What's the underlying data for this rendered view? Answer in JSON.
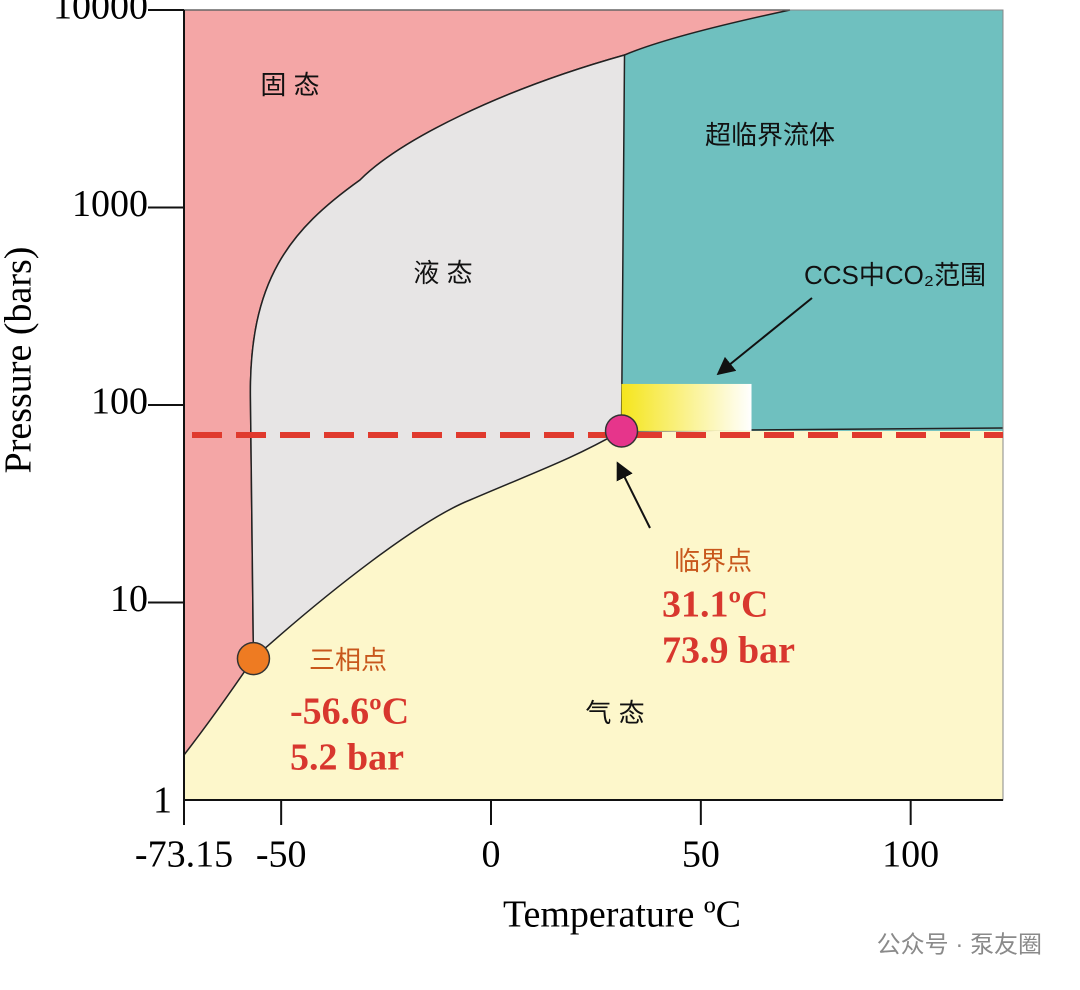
{
  "chart_data": {
    "type": "phase-diagram",
    "x_label": "Temperature ºC",
    "y_label": "Pressure (bars)",
    "xlim": [
      -73.15,
      122
    ],
    "xticks": [
      -73.15,
      -50,
      0,
      50,
      100
    ],
    "ylim": [
      1,
      10000
    ],
    "yticks": [
      1,
      10,
      100,
      1000,
      10000
    ],
    "y_scale": "log",
    "regions": [
      {
        "name": "固 态",
        "color": "#f4a6a6"
      },
      {
        "name": "液 态",
        "color": "#e7e5e5"
      },
      {
        "name": "超临界流体",
        "color": "#6fc0bf"
      },
      {
        "name": "气 态",
        "color": "#fdf7cb"
      }
    ],
    "points": [
      {
        "name": "三相点",
        "temperature": -56.6,
        "pressure": 5.2,
        "value_labels": {
          "temperature": "-56.6ºC",
          "pressure": "5.2 bar"
        },
        "color": "#ee7b22"
      },
      {
        "name": "临界点",
        "temperature": 31.1,
        "pressure": 73.9,
        "value_labels": {
          "temperature": "31.1ºC",
          "pressure": "73.9 bar"
        },
        "color": "#e6358b"
      }
    ],
    "annotation": "CCS中CO₂范围",
    "dashed_line_color": "#e03a2e"
  },
  "watermark": "公众号 · 泵友圈"
}
